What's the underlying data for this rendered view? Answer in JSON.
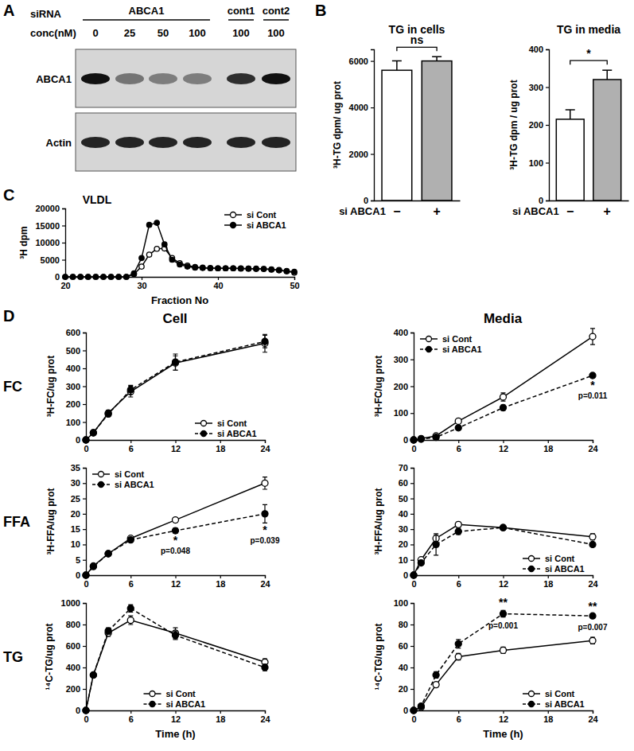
{
  "panel_labels": [
    "A",
    "B",
    "C",
    "D"
  ],
  "blot": {
    "header": "siRNA",
    "conc_label": "conc(nM)",
    "groups": [
      {
        "label": "ABCA1",
        "span": 4
      },
      {
        "label": "cont1",
        "span": 1
      },
      {
        "label": "cont2",
        "span": 1
      }
    ],
    "conc": [
      0,
      25,
      50,
      100,
      100,
      100
    ],
    "rows": [
      {
        "label": "ABCA1",
        "intensity": [
          1,
          0.5,
          0.45,
          0.45,
          0.85,
          1
        ]
      },
      {
        "label": "Actin",
        "intensity": [
          0.9,
          0.9,
          0.9,
          0.9,
          0.9,
          0.9
        ]
      }
    ]
  },
  "panel_d": {
    "columns": [
      "Cell",
      "Media"
    ],
    "rows": [
      "FC",
      "FFA",
      "TG"
    ]
  },
  "chart_data": [
    {
      "type": "bar",
      "title": "TG in cells",
      "categories": [
        "−",
        "+"
      ],
      "values": [
        5600,
        6000
      ],
      "errors": [
        400,
        180
      ],
      "colors": [
        "#ffffff",
        "#b0b0b0"
      ],
      "ylim": [
        0,
        6500
      ],
      "yticks": [
        0,
        2000,
        4000,
        6000
      ],
      "y_label": "³H-TG dpm/ ug prot",
      "x_label": "si ABCA1",
      "annotations": [
        {
          "text": "ns"
        }
      ]
    },
    {
      "type": "bar",
      "title": "TG in media",
      "categories": [
        "−",
        "+"
      ],
      "values": [
        215,
        320
      ],
      "errors": [
        25,
        25
      ],
      "colors": [
        "#ffffff",
        "#b0b0b0"
      ],
      "ylim": [
        0,
        400
      ],
      "yticks": [
        0,
        100,
        200,
        300,
        400
      ],
      "y_label": "³H-TG dpm / ug prot",
      "x_label": "si ABCA1",
      "annotations": [
        {
          "text": "*"
        }
      ]
    },
    {
      "type": "line",
      "title": "VLDL",
      "x": [
        20,
        21,
        22,
        23,
        24,
        25,
        26,
        27,
        28,
        29,
        30,
        31,
        32,
        33,
        34,
        35,
        36,
        37,
        38,
        39,
        40,
        41,
        42,
        43,
        44,
        45,
        46,
        47,
        48,
        49,
        50
      ],
      "series": [
        {
          "name": "si Cont",
          "color": "#000000",
          "marker": "open-circle",
          "line_style": "solid",
          "values": [
            0,
            0,
            0,
            0,
            0,
            0,
            0,
            0,
            0,
            800,
            3000,
            6500,
            8200,
            8300,
            5500,
            4000,
            3300,
            2900,
            2700,
            2600,
            2500,
            2500,
            2500,
            2400,
            2400,
            2300,
            2300,
            2100,
            1900,
            1600,
            1200
          ]
        },
        {
          "name": "si ABCA1",
          "color": "#000000",
          "marker": "filled-circle",
          "line_style": "solid",
          "values": [
            0,
            0,
            0,
            0,
            0,
            0,
            0,
            0,
            0,
            1000,
            5500,
            15200,
            15800,
            9500,
            5000,
            3600,
            3000,
            2700,
            2600,
            2500,
            2500,
            2500,
            2500,
            2500,
            2400,
            2400,
            2300,
            2200,
            2000,
            1700,
            1500
          ]
        }
      ],
      "xlim": [
        20,
        50
      ],
      "xticks": [
        20,
        30,
        40,
        50
      ],
      "ylim": [
        0,
        20000
      ],
      "yticks": [
        0,
        5000,
        10000,
        15000,
        20000
      ],
      "x_label": "Fraction No",
      "y_label": "³H dpm",
      "legend": "top-right"
    },
    {
      "type": "line",
      "x": [
        0,
        1,
        3,
        6,
        12,
        24
      ],
      "series": [
        {
          "name": "si Cont",
          "color": "#000000",
          "marker": "open-circle",
          "line_style": "solid",
          "values": [
            0,
            40,
            150,
            270,
            430,
            540
          ],
          "errors": [
            0,
            5,
            15,
            30,
            40,
            50
          ]
        },
        {
          "name": "si ABCA1",
          "color": "#000000",
          "marker": "filled-circle",
          "line_style": "dashed",
          "values": [
            0,
            40,
            145,
            280,
            435,
            550
          ],
          "errors": [
            0,
            5,
            15,
            25,
            45,
            35
          ]
        }
      ],
      "xlim": [
        0,
        24
      ],
      "xticks": [
        0,
        6,
        12,
        18,
        24
      ],
      "ylim": [
        0,
        600
      ],
      "yticks": [
        0,
        100,
        200,
        300,
        400,
        500,
        600
      ],
      "y_label": "³H-FC/ug prot",
      "legend": "bottom-right"
    },
    {
      "type": "line",
      "x": [
        0,
        1,
        3,
        6,
        12,
        24
      ],
      "series": [
        {
          "name": "si Cont",
          "color": "#000000",
          "marker": "open-circle",
          "line_style": "solid",
          "values": [
            0,
            5,
            15,
            70,
            160,
            385
          ],
          "errors": [
            0,
            2,
            3,
            5,
            15,
            30
          ]
        },
        {
          "name": "si ABCA1",
          "color": "#000000",
          "marker": "filled-circle",
          "line_style": "dashed",
          "values": [
            0,
            3,
            10,
            45,
            120,
            240
          ],
          "errors": [
            0,
            1,
            2,
            4,
            10,
            8
          ]
        }
      ],
      "xlim": [
        0,
        24
      ],
      "xticks": [
        0,
        6,
        12,
        18,
        24
      ],
      "ylim": [
        0,
        400
      ],
      "yticks": [
        0,
        100,
        200,
        300,
        400
      ],
      "y_label": "³H-FC/ug prot",
      "legend": "top-left",
      "annotations": [
        {
          "x": 24,
          "text": "*",
          "p": "p=0.011"
        }
      ]
    },
    {
      "type": "line",
      "x": [
        0,
        1,
        3,
        6,
        12,
        24
      ],
      "series": [
        {
          "name": "si Cont",
          "color": "#000000",
          "marker": "open-circle",
          "line_style": "solid",
          "values": [
            0,
            3,
            7,
            12,
            18,
            30
          ],
          "errors": [
            0,
            0.3,
            0.5,
            0.6,
            0.8,
            2
          ]
        },
        {
          "name": "si ABCA1",
          "color": "#000000",
          "marker": "filled-circle",
          "line_style": "dashed",
          "values": [
            0,
            2.8,
            7,
            11.5,
            14.5,
            20
          ],
          "errors": [
            0,
            0.3,
            0.5,
            0.6,
            0.8,
            3
          ]
        }
      ],
      "xlim": [
        0,
        24
      ],
      "xticks": [
        0,
        6,
        12,
        18,
        24
      ],
      "ylim": [
        0,
        35
      ],
      "yticks": [
        0,
        5,
        10,
        15,
        20,
        25,
        30,
        35
      ],
      "y_label": "³H-FFA/ug prot",
      "legend": "top-left",
      "annotations": [
        {
          "x": 12,
          "text": "*",
          "p": "p=0.048"
        },
        {
          "x": 24,
          "text": "*",
          "p": "p=0.039"
        }
      ]
    },
    {
      "type": "line",
      "x": [
        0,
        1,
        3,
        6,
        12,
        24
      ],
      "series": [
        {
          "name": "si Cont",
          "color": "#000000",
          "marker": "open-circle",
          "line_style": "solid",
          "values": [
            0,
            10,
            24,
            33,
            31,
            25
          ],
          "errors": [
            0,
            1,
            2,
            1.5,
            1,
            2
          ]
        },
        {
          "name": "si ABCA1",
          "color": "#000000",
          "marker": "filled-circle",
          "line_style": "dashed",
          "values": [
            0,
            8,
            20,
            28.5,
            31,
            20
          ],
          "errors": [
            0,
            1,
            7,
            2,
            1.5,
            1
          ]
        }
      ],
      "xlim": [
        0,
        24
      ],
      "xticks": [
        0,
        6,
        12,
        18,
        24
      ],
      "ylim": [
        0,
        70
      ],
      "yticks": [
        0,
        10,
        20,
        30,
        40,
        50,
        60,
        70
      ],
      "y_label": "³H-FFA/ug prot",
      "legend": "bottom-right"
    },
    {
      "type": "line",
      "x": [
        0,
        1,
        3,
        6,
        12,
        24
      ],
      "series": [
        {
          "name": "si Cont",
          "color": "#000000",
          "marker": "open-circle",
          "line_style": "solid",
          "values": [
            0,
            330,
            720,
            840,
            720,
            450
          ],
          "errors": [
            0,
            10,
            30,
            40,
            50,
            30
          ]
        },
        {
          "name": "si ABCA1",
          "color": "#000000",
          "marker": "filled-circle",
          "line_style": "dashed",
          "values": [
            0,
            330,
            740,
            950,
            700,
            400
          ],
          "errors": [
            0,
            10,
            30,
            35,
            40,
            30
          ]
        }
      ],
      "xlim": [
        0,
        24
      ],
      "xticks": [
        0,
        6,
        12,
        18,
        24
      ],
      "ylim": [
        0,
        1000
      ],
      "yticks": [
        0,
        200,
        400,
        600,
        800,
        1000
      ],
      "y_label": "¹⁴C-TG/ug prot",
      "x_label": "Time (h)",
      "legend": "bottom"
    },
    {
      "type": "line",
      "x": [
        0,
        1,
        3,
        6,
        12,
        24
      ],
      "series": [
        {
          "name": "si Cont",
          "color": "#000000",
          "marker": "open-circle",
          "line_style": "solid",
          "values": [
            0,
            3,
            24,
            50,
            56,
            65
          ],
          "errors": [
            0,
            0.5,
            2,
            3,
            3,
            3
          ]
        },
        {
          "name": "si ABCA1",
          "color": "#000000",
          "marker": "filled-circle",
          "line_style": "dashed",
          "values": [
            0,
            4,
            33,
            62,
            90,
            88
          ],
          "errors": [
            0,
            0.5,
            3,
            4,
            3,
            2
          ]
        }
      ],
      "xlim": [
        0,
        24
      ],
      "xticks": [
        0,
        6,
        12,
        18,
        24
      ],
      "ylim": [
        0,
        100
      ],
      "yticks": [
        0,
        20,
        40,
        60,
        80,
        100
      ],
      "y_label": "¹⁴C-TG/ug prot",
      "x_label": "Time (h)",
      "legend": "bottom-right",
      "annotations": [
        {
          "x": 12,
          "text": "**",
          "p": "p=0.001"
        },
        {
          "x": 24,
          "text": "**",
          "p": "p=0.007"
        }
      ]
    }
  ]
}
